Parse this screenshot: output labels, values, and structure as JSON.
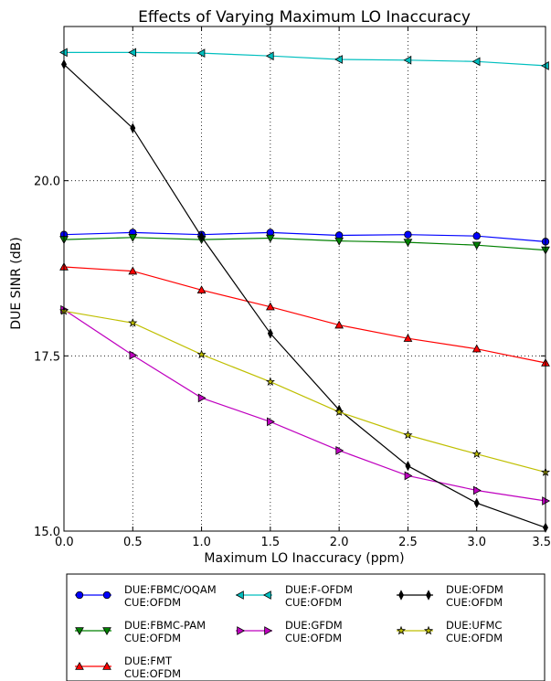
{
  "chart_data": {
    "type": "line",
    "title": "Effects of Varying Maximum LO Inaccuracy",
    "xlabel": "Maximum LO Inaccuracy (ppm)",
    "ylabel": "DUE SINR (dB)",
    "x": [
      0.0,
      0.5,
      1.0,
      1.5,
      2.0,
      2.5,
      3.0,
      3.5
    ],
    "xlim": [
      0.0,
      3.5
    ],
    "ylim": [
      15.0,
      22.2
    ],
    "xticks": [
      "0.0",
      "0.5",
      "1.0",
      "1.5",
      "2.0",
      "2.5",
      "3.0",
      "3.5"
    ],
    "yticks": [
      {
        "value": 15.0,
        "label": "15.0"
      },
      {
        "value": 17.5,
        "label": "17.5"
      },
      {
        "value": 20.0,
        "label": "20.0"
      }
    ],
    "grid": true,
    "legend_position": "bottom",
    "series": [
      {
        "line1": "DUE:FBMC/OQAM",
        "line2": "CUE:OFDM",
        "color": "#0000ff",
        "marker": "circle",
        "values": [
          19.23,
          19.26,
          19.23,
          19.26,
          19.22,
          19.23,
          19.21,
          19.13
        ]
      },
      {
        "line1": "DUE:FBMC-PAM",
        "line2": "CUE:OFDM",
        "color": "#008000",
        "marker": "triangle-down",
        "values": [
          19.16,
          19.19,
          19.16,
          19.18,
          19.14,
          19.12,
          19.08,
          19.01
        ]
      },
      {
        "line1": "DUE:FMT",
        "line2": "CUE:OFDM",
        "color": "#ff0000",
        "marker": "triangle-up",
        "values": [
          18.77,
          18.71,
          18.44,
          18.2,
          17.94,
          17.75,
          17.6,
          17.4
        ]
      },
      {
        "line1": "DUE:F-OFDM",
        "line2": "CUE:OFDM",
        "color": "#00bfbf",
        "marker": "triangle-left",
        "values": [
          21.83,
          21.83,
          21.82,
          21.78,
          21.73,
          21.72,
          21.7,
          21.64
        ]
      },
      {
        "line1": "DUE:GFDM",
        "line2": "CUE:OFDM",
        "color": "#bf00bf",
        "marker": "triangle-right",
        "values": [
          18.16,
          17.51,
          16.9,
          16.56,
          16.15,
          15.79,
          15.58,
          15.43
        ]
      },
      {
        "line1": "DUE:OFDM",
        "line2": "CUE:OFDM",
        "color": "#000000",
        "marker": "diamond",
        "values": [
          21.66,
          20.75,
          19.2,
          17.82,
          16.73,
          15.93,
          15.4,
          15.05
        ]
      },
      {
        "line1": "DUE:UFMC",
        "line2": "CUE:OFDM",
        "color": "#bfbf00",
        "marker": "star",
        "values": [
          18.14,
          17.97,
          17.52,
          17.13,
          16.7,
          16.37,
          16.1,
          15.84
        ]
      }
    ]
  }
}
